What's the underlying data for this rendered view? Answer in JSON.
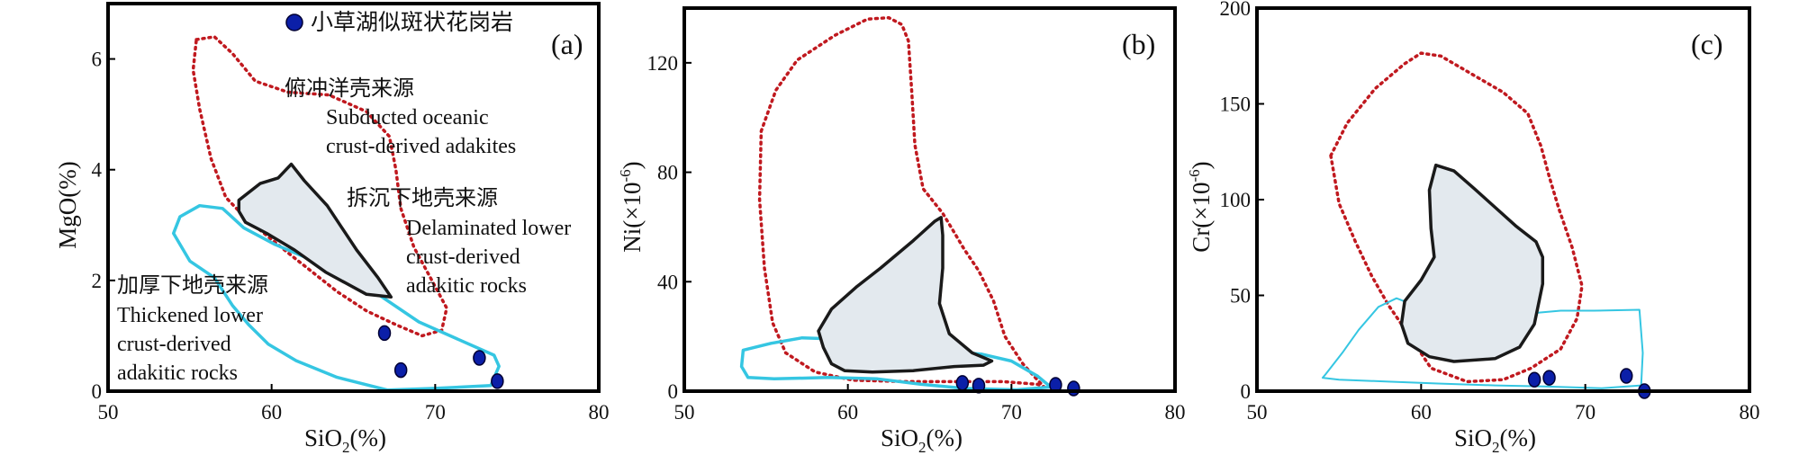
{
  "colors": {
    "dotted_red": "#c0191f",
    "thickened_cyan": "#35c6e2",
    "delaminated_black": "#1a1a1a",
    "delaminated_fill": "#e3e9ee",
    "sample_point": "#0b1fa8",
    "sample_point_edge": "#000033"
  },
  "chart_data": [
    {
      "type": "scatter",
      "panel": "(a)",
      "legend": {
        "label": "小草湖似斑状花岗岩",
        "placement": "top-right"
      },
      "xlabel": {
        "main": "SiO",
        "sub": "2",
        "unit": "(%)"
      },
      "ylabel": {
        "text": "MgO(%)"
      },
      "xlim": [
        50,
        80
      ],
      "ylim": [
        0,
        7
      ],
      "xticks": [
        50,
        60,
        70,
        80
      ],
      "yticks": [
        0,
        2,
        4,
        6
      ],
      "series": [
        {
          "name": "小草湖似斑状花岗岩",
          "x": [
            66.9,
            67.9,
            72.7,
            73.8
          ],
          "y": [
            1.05,
            0.38,
            0.6,
            0.18
          ]
        }
      ],
      "regions": [
        {
          "name": "Subducted oceanic crust-derived adakites",
          "style": "dotted-red",
          "points": [
            [
              55.4,
              6.35
            ],
            [
              56.5,
              6.4
            ],
            [
              57.6,
              6.1
            ],
            [
              59,
              5.6
            ],
            [
              61,
              5.4
            ],
            [
              63.5,
              5.35
            ],
            [
              65.8,
              5.05
            ],
            [
              67.2,
              4.6
            ],
            [
              67.6,
              4.0
            ],
            [
              67.9,
              3.3
            ],
            [
              68.7,
              2.6
            ],
            [
              69.8,
              2.0
            ],
            [
              70.7,
              1.5
            ],
            [
              70.4,
              1.1
            ],
            [
              69.2,
              1.0
            ],
            [
              67.6,
              1.2
            ],
            [
              65.8,
              1.45
            ],
            [
              64,
              1.8
            ],
            [
              61,
              2.5
            ],
            [
              58.5,
              3.1
            ],
            [
              57.2,
              3.5
            ],
            [
              56.3,
              4.2
            ],
            [
              55.6,
              5.1
            ],
            [
              55.2,
              5.8
            ]
          ]
        },
        {
          "name": "Delaminated lower crust-derived adakitic rocks",
          "style": "black-filled",
          "points": [
            [
              58,
              3.45
            ],
            [
              59.3,
              3.75
            ],
            [
              60.4,
              3.85
            ],
            [
              61.2,
              4.1
            ],
            [
              62,
              3.8
            ],
            [
              63.4,
              3.35
            ],
            [
              65.2,
              2.55
            ],
            [
              66.5,
              2.05
            ],
            [
              67.3,
              1.7
            ],
            [
              65.8,
              1.75
            ],
            [
              63.3,
              2.15
            ],
            [
              61.4,
              2.55
            ],
            [
              59.7,
              2.85
            ],
            [
              58.4,
              3.05
            ],
            [
              58,
              3.25
            ]
          ]
        },
        {
          "name": "Thickened lower crust-derived adakitic rocks",
          "style": "cyan",
          "points": [
            [
              54.4,
              3.15
            ],
            [
              55.6,
              3.35
            ],
            [
              57,
              3.3
            ],
            [
              58.3,
              2.95
            ],
            [
              60.2,
              2.65
            ],
            [
              63,
              2.3
            ],
            [
              66,
              1.85
            ],
            [
              69,
              1.25
            ],
            [
              71.3,
              0.95
            ],
            [
              73.6,
              0.65
            ],
            [
              73.9,
              0.45
            ],
            [
              73.4,
              0.1
            ],
            [
              70,
              0.05
            ],
            [
              67.1,
              0.02
            ],
            [
              64,
              0.25
            ],
            [
              61.5,
              0.55
            ],
            [
              59.8,
              0.85
            ],
            [
              58.6,
              1.2
            ],
            [
              57.6,
              1.55
            ],
            [
              56.5,
              2.05
            ],
            [
              55,
              2.35
            ],
            [
              54,
              2.85
            ]
          ]
        }
      ],
      "annotations": [
        {
          "id": "subducted",
          "lines": [
            "俯冲洋壳来源",
            "Subducted oceanic",
            "crust-derived adakites"
          ]
        },
        {
          "id": "delaminated",
          "lines": [
            "拆沉下地壳来源",
            "Delaminated lower",
            "crust-derived",
            "adakitic rocks"
          ]
        },
        {
          "id": "thickened",
          "lines": [
            "加厚下地壳来源",
            "Thickened lower",
            "crust-derived",
            "adakitic rocks"
          ]
        }
      ]
    },
    {
      "type": "scatter",
      "panel": "(b)",
      "xlabel": {
        "main": "SiO",
        "sub": "2",
        "unit": "(%)"
      },
      "ylabel": {
        "text": "Ni(×10",
        "sup": "-6",
        "tail": ")"
      },
      "xlim": [
        50,
        80
      ],
      "ylim": [
        0,
        140
      ],
      "xticks": [
        50,
        60,
        70,
        80
      ],
      "yticks": [
        0,
        40,
        80,
        120
      ],
      "series": [
        {
          "name": "小草湖似斑状花岗岩",
          "x": [
            67,
            68,
            72.7,
            73.8
          ],
          "y": [
            3,
            2,
            2.3,
            1
          ]
        }
      ],
      "regions": [
        {
          "name": "Subducted oceanic",
          "style": "dotted-red",
          "points": [
            [
              54.7,
              95
            ],
            [
              55.6,
              110
            ],
            [
              56.9,
              121
            ],
            [
              59.2,
              130
            ],
            [
              61.2,
              136
            ],
            [
              62.5,
              136.5
            ],
            [
              63.3,
              134
            ],
            [
              63.7,
              128
            ],
            [
              63.9,
              110
            ],
            [
              64.1,
              90
            ],
            [
              64.6,
              74
            ],
            [
              65.8,
              65
            ],
            [
              66.5,
              58
            ],
            [
              67.1,
              52
            ],
            [
              68,
              44
            ],
            [
              68.9,
              33
            ],
            [
              69.6,
              20
            ],
            [
              70.7,
              10
            ],
            [
              71.6,
              4
            ],
            [
              72,
              1.5
            ],
            [
              71.6,
              2.5
            ],
            [
              69.5,
              3.5
            ],
            [
              66.5,
              3.5
            ],
            [
              63.6,
              3.5
            ],
            [
              60.3,
              4
            ],
            [
              58,
              7
            ],
            [
              56.2,
              14
            ],
            [
              55.4,
              25
            ],
            [
              54.9,
              45
            ],
            [
              54.6,
              70
            ]
          ]
        },
        {
          "name": "Delaminated lower",
          "style": "black-filled",
          "points": [
            [
              58.2,
              22
            ],
            [
              59,
              30
            ],
            [
              60.5,
              38
            ],
            [
              62,
              45
            ],
            [
              64,
              55
            ],
            [
              65.3,
              62
            ],
            [
              65.7,
              63.5
            ],
            [
              65.8,
              57
            ],
            [
              65.8,
              45
            ],
            [
              65.6,
              32
            ],
            [
              66.2,
              21
            ],
            [
              67.6,
              14
            ],
            [
              68.8,
              11
            ],
            [
              68.3,
              9.5
            ],
            [
              66.5,
              9
            ],
            [
              64,
              7.5
            ],
            [
              61.5,
              7
            ],
            [
              59.8,
              7.5
            ],
            [
              59,
              10
            ],
            [
              58.5,
              16
            ]
          ]
        },
        {
          "name": "Thickened lower",
          "style": "cyan",
          "points": [
            [
              53.6,
              15
            ],
            [
              55.3,
              17.5
            ],
            [
              57.2,
              19.5
            ],
            [
              59.7,
              19
            ],
            [
              62.6,
              17
            ],
            [
              65.3,
              15
            ],
            [
              68.2,
              13.5
            ],
            [
              70,
              11
            ],
            [
              71.6,
              5.5
            ],
            [
              72.4,
              1.5
            ],
            [
              70.3,
              0.5
            ],
            [
              67.2,
              1
            ],
            [
              64.5,
              2.5
            ],
            [
              61.8,
              4.5
            ],
            [
              58.8,
              5
            ],
            [
              55.5,
              4.5
            ],
            [
              53.9,
              5
            ],
            [
              53.5,
              9
            ]
          ]
        }
      ]
    },
    {
      "type": "scatter",
      "panel": "(c)",
      "xlabel": {
        "main": "SiO",
        "sub": "2",
        "unit": "(%)"
      },
      "ylabel": {
        "text": "Cr(×10",
        "sup": "-6",
        "tail": ")"
      },
      "xlim": [
        50,
        80
      ],
      "ylim": [
        0,
        200
      ],
      "xticks": [
        50,
        60,
        70,
        80
      ],
      "yticks": [
        0,
        50,
        100,
        150,
        200
      ],
      "series": [
        {
          "name": "小草湖似斑状花岗岩",
          "x": [
            66.9,
            67.8,
            72.5,
            73.6
          ],
          "y": [
            6,
            7,
            8,
            0
          ]
        }
      ],
      "regions": [
        {
          "name": "Subducted oceanic",
          "style": "dotted-red",
          "points": [
            [
              54.5,
              123
            ],
            [
              55.5,
              140
            ],
            [
              57.2,
              158
            ],
            [
              59,
              171
            ],
            [
              60,
              176.5
            ],
            [
              61.2,
              175
            ],
            [
              63.2,
              165
            ],
            [
              65,
              156
            ],
            [
              66.5,
              145
            ],
            [
              67.3,
              128
            ],
            [
              67.8,
              112
            ],
            [
              68.4,
              95
            ],
            [
              69.2,
              75
            ],
            [
              69.8,
              55
            ],
            [
              69.5,
              38
            ],
            [
              68.5,
              22
            ],
            [
              66.7,
              12
            ],
            [
              65,
              6
            ],
            [
              62.8,
              5
            ],
            [
              60.6,
              12
            ],
            [
              59.2,
              30
            ],
            [
              58,
              45
            ],
            [
              57,
              60
            ],
            [
              56,
              78
            ],
            [
              55,
              98
            ]
          ]
        },
        {
          "name": "Delaminated lower",
          "style": "black-filled",
          "points": [
            [
              60.9,
              118
            ],
            [
              62,
              115
            ],
            [
              63.2,
              106
            ],
            [
              64.5,
              96
            ],
            [
              65.8,
              86
            ],
            [
              67,
              78
            ],
            [
              67.4,
              70
            ],
            [
              67.4,
              56
            ],
            [
              66.9,
              35
            ],
            [
              66,
              23
            ],
            [
              64.5,
              17
            ],
            [
              62,
              15.5
            ],
            [
              60.5,
              18
            ],
            [
              59.2,
              25
            ],
            [
              58.8,
              35
            ],
            [
              59,
              47
            ],
            [
              60,
              58
            ],
            [
              60.8,
              70
            ],
            [
              60.6,
              85
            ],
            [
              60.5,
              105
            ]
          ]
        },
        {
          "name": "Thickened lower",
          "style": "cyan",
          "points": [
            [
              54.2,
              9
            ],
            [
              55.2,
              20
            ],
            [
              56.2,
              32
            ],
            [
              57.4,
              44
            ],
            [
              58.5,
              48.5
            ],
            [
              59.7,
              44.5
            ],
            [
              61.6,
              42
            ],
            [
              64,
              40
            ],
            [
              66.5,
              40.5
            ],
            [
              68.5,
              42
            ],
            [
              70.5,
              42
            ],
            [
              73.3,
              42.5
            ],
            [
              73.5,
              20
            ],
            [
              73.4,
              3
            ],
            [
              71,
              1.5
            ],
            [
              67.5,
              2.5
            ],
            [
              64.5,
              3
            ],
            [
              61,
              4
            ],
            [
              58,
              5
            ],
            [
              55,
              6
            ],
            [
              54,
              7
            ]
          ]
        }
      ]
    }
  ]
}
